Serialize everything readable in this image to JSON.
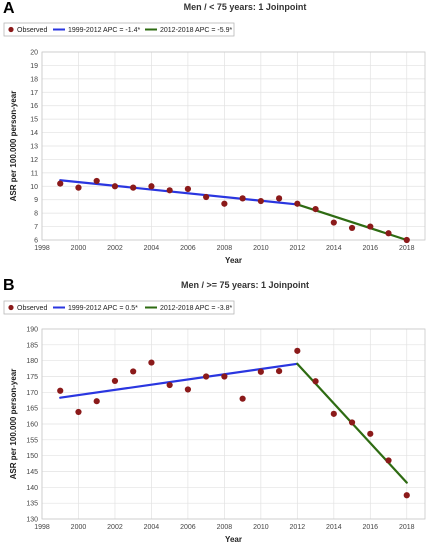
{
  "panels": [
    {
      "letter": "A"
    },
    {
      "letter": "B"
    }
  ],
  "colors": {
    "observed": "#8b1a1a",
    "segment1": "#2a36e0",
    "segment2": "#2e6b12",
    "grid": "#e2e2e2",
    "legend_border": "#b8b8b8"
  },
  "chart_data": [
    {
      "type": "scatter",
      "title": "Men / < 75 years: 1 Joinpoint",
      "xlabel": "Year",
      "ylabel": "ASR per 100.000 person-year",
      "xlim": [
        1998,
        2019
      ],
      "ylim": [
        6,
        20
      ],
      "x_ticks": [
        1998,
        2000,
        2002,
        2004,
        2006,
        2008,
        2010,
        2012,
        2014,
        2016,
        2018
      ],
      "y_ticks": [
        6,
        7,
        8,
        9,
        10,
        11,
        12,
        13,
        14,
        15,
        16,
        17,
        18,
        19,
        20
      ],
      "grid": true,
      "legend_position": "top-left",
      "legend": [
        "Observed",
        "1999-2012 APC = -1.4*",
        "2012-2018 APC = -5.9*"
      ],
      "series": [
        {
          "name": "Observed",
          "kind": "points",
          "x": [
            1999,
            2000,
            2001,
            2002,
            2003,
            2004,
            2005,
            2006,
            2007,
            2008,
            2009,
            2010,
            2011,
            2012,
            2013,
            2014,
            2015,
            2016,
            2017,
            2018
          ],
          "y": [
            10.2,
            9.9,
            10.4,
            10.0,
            9.9,
            10.0,
            9.7,
            9.8,
            9.2,
            8.7,
            9.1,
            8.9,
            9.1,
            8.7,
            8.3,
            7.3,
            6.9,
            7.0,
            6.5,
            6.0
          ]
        },
        {
          "name": "1999-2012 APC = -1.4*",
          "kind": "line",
          "x": [
            1999,
            2012
          ],
          "y": [
            10.45,
            8.65
          ]
        },
        {
          "name": "2012-2018 APC = -5.9*",
          "kind": "line",
          "x": [
            2012,
            2018
          ],
          "y": [
            8.65,
            6.0
          ]
        }
      ]
    },
    {
      "type": "scatter",
      "title": "Men / >= 75 years: 1 Joinpoint",
      "xlabel": "Year",
      "ylabel": "ASR per 100.000 person-year",
      "xlim": [
        1998,
        2019
      ],
      "ylim": [
        130,
        190
      ],
      "x_ticks": [
        1998,
        2000,
        2002,
        2004,
        2006,
        2008,
        2010,
        2012,
        2014,
        2016,
        2018
      ],
      "y_ticks": [
        130,
        135,
        140,
        145,
        150,
        155,
        160,
        165,
        170,
        175,
        180,
        185,
        190
      ],
      "grid": true,
      "legend_position": "top-left",
      "legend": [
        "Observed",
        "1999-2012 APC = 0.5*",
        "2012-2018 APC = -3.8*"
      ],
      "series": [
        {
          "name": "Observed",
          "kind": "points",
          "x": [
            1999,
            2000,
            2001,
            2002,
            2003,
            2004,
            2005,
            2006,
            2007,
            2008,
            2009,
            2010,
            2011,
            2012,
            2013,
            2014,
            2015,
            2016,
            2017,
            2018
          ],
          "y": [
            170.5,
            163.8,
            167.2,
            173.6,
            176.6,
            179.4,
            172.3,
            170.9,
            175.0,
            175.0,
            168.0,
            176.5,
            176.7,
            183.1,
            173.5,
            163.2,
            160.5,
            156.9,
            148.5,
            137.5
          ]
        },
        {
          "name": "1999-2012 APC = 0.5*",
          "kind": "line",
          "x": [
            1999,
            2012
          ],
          "y": [
            168.3,
            179.0
          ]
        },
        {
          "name": "2012-2018 APC = -3.8*",
          "kind": "line",
          "x": [
            2012,
            2018
          ],
          "y": [
            179.0,
            141.5
          ]
        }
      ]
    }
  ]
}
